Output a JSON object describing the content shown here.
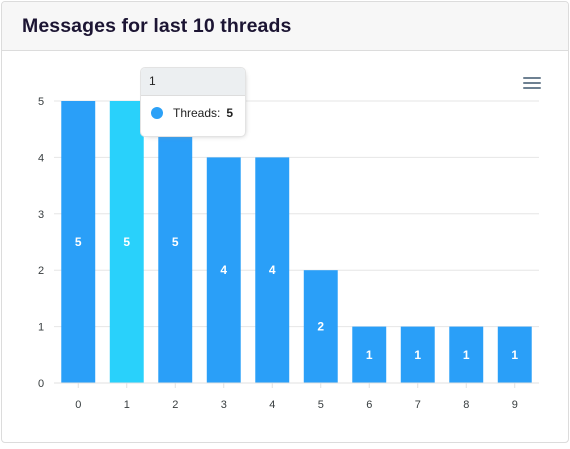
{
  "header": {
    "title": "Messages for last 10 threads"
  },
  "chart_data": {
    "type": "bar",
    "categories": [
      "0",
      "1",
      "2",
      "3",
      "4",
      "5",
      "6",
      "7",
      "8",
      "9"
    ],
    "series": [
      {
        "name": "Threads",
        "values": [
          5,
          5,
          5,
          4,
          4,
          2,
          1,
          1,
          1,
          1
        ]
      }
    ],
    "title": "",
    "xlabel": "",
    "ylabel": "",
    "ylim": [
      0,
      5
    ],
    "yticks": [
      0,
      1,
      2,
      3,
      4,
      5
    ],
    "grid": true,
    "highlighted_index": 1,
    "colors": {
      "bar": "#2a9ff8",
      "bar_hover": "#29d1fb"
    }
  },
  "tooltip": {
    "title": "1",
    "series_label": "Threads:",
    "value": "5",
    "marker_color": "#2ca1f7"
  },
  "toolbar": {
    "menu_icon": "hamburger-menu-icon"
  }
}
